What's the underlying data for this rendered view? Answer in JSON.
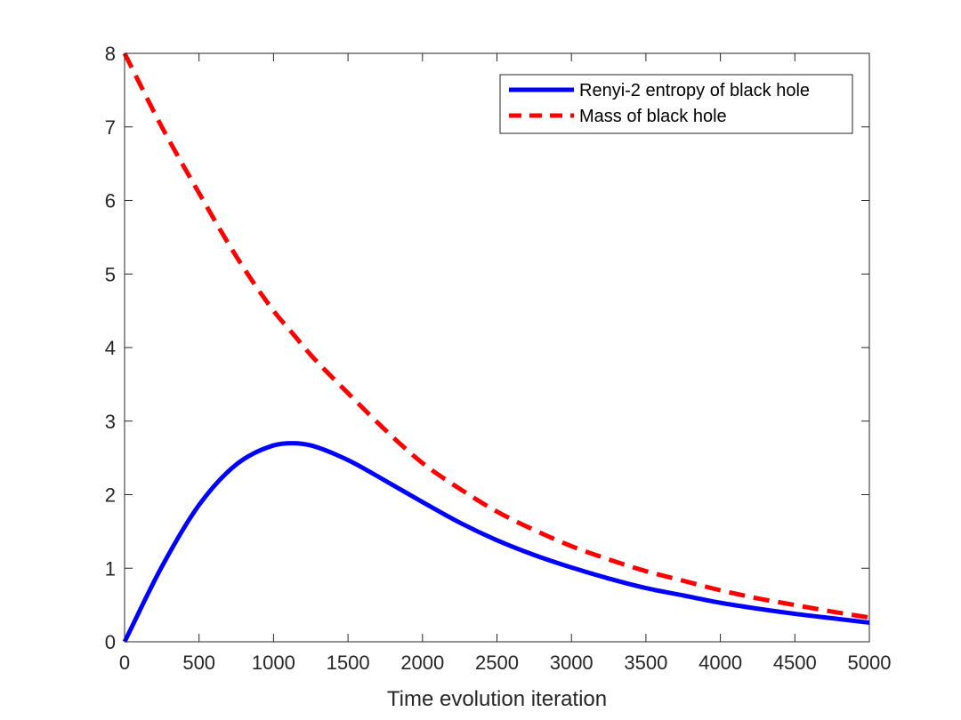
{
  "chart_data": {
    "type": "line",
    "title": "",
    "xlabel": "Time evolution iteration",
    "ylabel": "",
    "xlim": [
      0,
      5000
    ],
    "ylim": [
      0,
      8
    ],
    "xticks": [
      0,
      500,
      1000,
      1500,
      2000,
      2500,
      3000,
      3500,
      4000,
      4500,
      5000
    ],
    "yticks": [
      0,
      1,
      2,
      3,
      4,
      5,
      6,
      7,
      8
    ],
    "grid": false,
    "legend_position": "top-right",
    "x": [
      0,
      250,
      500,
      750,
      1000,
      1125,
      1250,
      1500,
      1750,
      2000,
      2250,
      2500,
      2750,
      3000,
      3250,
      3500,
      3750,
      4000,
      4250,
      4500,
      4750,
      5000
    ],
    "series": [
      {
        "name": "Renyi-2 entropy of black hole",
        "color": "#0000ff",
        "style": "solid",
        "values": [
          0.0,
          1.02,
          1.86,
          2.41,
          2.67,
          2.7,
          2.67,
          2.47,
          2.19,
          1.9,
          1.62,
          1.38,
          1.18,
          1.01,
          0.86,
          0.73,
          0.63,
          0.53,
          0.45,
          0.38,
          0.32,
          0.26
        ]
      },
      {
        "name": "Mass of black hole",
        "color": "#ff0000",
        "style": "dashed",
        "values": [
          8.0,
          7.0,
          6.1,
          5.24,
          4.5,
          4.2,
          3.9,
          3.38,
          2.88,
          2.43,
          2.08,
          1.77,
          1.52,
          1.3,
          1.12,
          0.96,
          0.83,
          0.7,
          0.59,
          0.5,
          0.41,
          0.33
        ]
      }
    ]
  }
}
